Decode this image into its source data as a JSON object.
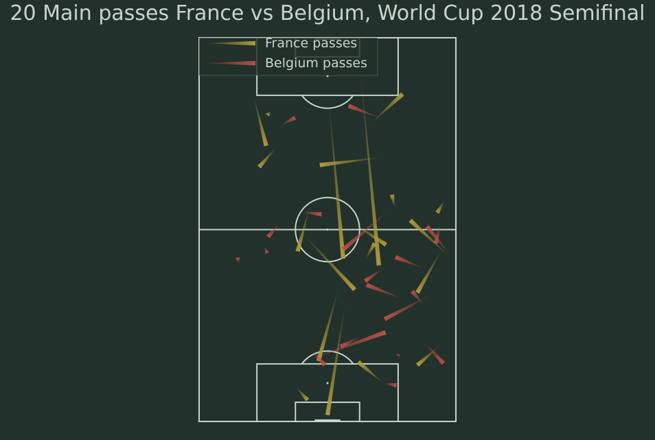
{
  "title": "20 Main passes France vs Belgium, World Cup 2018 Semifinal",
  "colors": {
    "background": "#22312b",
    "lines": "#c7d5cc",
    "france": "#ad993c",
    "belgium": "#ba4f45"
  },
  "chart_data": {
    "type": "pass_map",
    "title": "20 Main passes France vs Belgium, World Cup 2018 Semifinal",
    "pitch": {
      "orientation": "vertical",
      "length": 120,
      "width": 80
    },
    "legend": {
      "placement": "top-left",
      "entries": [
        {
          "name": "France passes",
          "color": "#ad993c"
        },
        {
          "name": "Belgium passes",
          "color": "#ba4f45"
        }
      ]
    },
    "series": [
      {
        "name": "France passes",
        "passes": [
          [
            45.6,
            82.6,
            40.0,
            118.0
          ],
          [
            32.0,
            60.9,
            48.5,
            78.8
          ],
          [
            34.4,
            53.1,
            30.7,
            66.8
          ],
          [
            57.8,
            108.4,
            49.6,
            101.4
          ],
          [
            40.3,
            18.6,
            44.9,
            69.1
          ],
          [
            50.2,
            9.8,
            56.0,
            71.2
          ],
          [
            30.3,
            109.4,
            33.8,
            113.3
          ],
          [
            47.8,
            57.9,
            58.2,
            64.7
          ],
          [
            75.6,
            66.3,
            68.0,
            79.7
          ],
          [
            76.4,
            51.0,
            74.2,
            54.7
          ],
          [
            57.4,
            37.4,
            37.6,
            39.8
          ],
          [
            16.9,
            18.0,
            20.9,
            33.8
          ],
          [
            24.1,
            34.3,
            18.7,
            40.4
          ],
          [
            22.4,
            23.0,
            21.3,
            24.2
          ],
          [
            78.3,
            68.7,
            65.8,
            57.1
          ],
          [
            51.8,
            69.3,
            54.7,
            64.3
          ],
          [
            75.1,
            96.2,
            68.0,
            102.4
          ],
          [
            53.6,
            26.7,
            63.4,
            17.6
          ],
          [
            60.9,
            53.1,
            60.1,
            49.1
          ],
          [
            43.5,
            78.1,
            37.2,
            101.1
          ]
        ]
      },
      {
        "name": "Belgium passes",
        "passes": [
          [
            72.7,
            80.2,
            57.8,
            88.0
          ],
          [
            75.3,
            57.5,
            73.7,
            64.3
          ],
          [
            70.3,
            95.4,
            76.1,
            101.8
          ],
          [
            70.0,
            72.1,
            61.2,
            68.6
          ],
          [
            25.1,
            58.0,
            21.5,
            62.3
          ],
          [
            50.6,
            93.3,
            44.1,
            96.6
          ],
          [
            56.6,
            25.2,
            46.6,
            21.3
          ],
          [
            63.8,
            81.8,
            52.2,
            77.3
          ],
          [
            57.4,
            108.0,
            61.5,
            108.7
          ],
          [
            31.7,
            101.6,
            58.1,
            92.1
          ],
          [
            62.4,
            98.7,
            62.0,
            99.4
          ],
          [
            31.4,
            54.4,
            38.1,
            55.2
          ],
          [
            25.4,
            27.4,
            29.9,
            25.0
          ],
          [
            78.4,
            68.1,
            71.0,
            59.0
          ],
          [
            57.6,
            71.9,
            51.7,
            76.1
          ],
          [
            70.0,
            83.6,
            66.4,
            79.3
          ],
          [
            34.8,
            97.5,
            39.2,
            102.3
          ],
          [
            12.4,
            70.7,
            12.0,
            68.8
          ],
          [
            20.4,
            65.4,
            21.2,
            67.3
          ],
          [
            59.6,
            53.6,
            44.9,
            66.2
          ]
        ]
      }
    ]
  }
}
